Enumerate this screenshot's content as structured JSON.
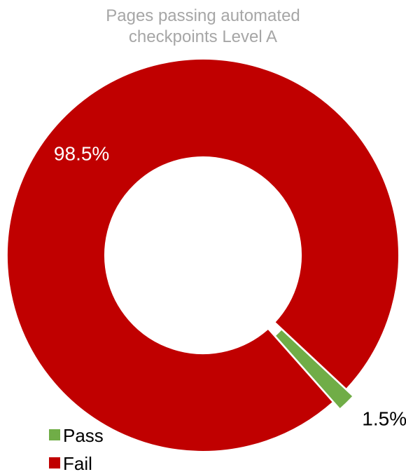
{
  "chart_data": {
    "type": "pie",
    "variant": "doughnut",
    "title_lines": [
      "Pages passing automated",
      "checkpoints Level A"
    ],
    "slices": [
      {
        "label": "Pass",
        "value": 1.5,
        "value_label": "1.5%",
        "color": "#70ad47",
        "exploded": true
      },
      {
        "label": "Fail",
        "value": 98.5,
        "value_label": "98.5%",
        "color": "#c00000",
        "exploded": false
      }
    ],
    "legend": {
      "position": "bottom-left",
      "entries": [
        "Pass",
        "Fail"
      ]
    },
    "label_colors": {
      "Pass": "#000000",
      "Fail": "#ffffff"
    }
  }
}
